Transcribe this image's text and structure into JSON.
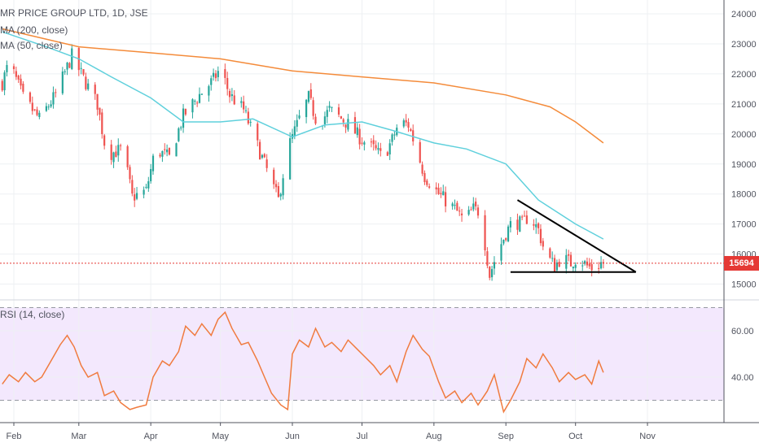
{
  "legend": {
    "title": "MR PRICE GROUP LTD, 1D, JSE",
    "ma200": "MA (200, close)",
    "ma50": "MA (50, close)",
    "rsi": "RSI (14, close)"
  },
  "price_tag": "15694",
  "colors": {
    "up": "#26a69a",
    "down": "#ef5350",
    "ma200": "#f48b3a",
    "ma50": "#5fd0dc",
    "rsi": "#f07b3f",
    "rsi_band": "#f3e8fd",
    "price_line": "#e53935"
  },
  "chart_data": [
    {
      "type": "candlestick",
      "title": "MR PRICE GROUP LTD, 1D, JSE",
      "y_ticks": [
        "24000",
        "23000",
        "22000",
        "21000",
        "20000",
        "19000",
        "18000",
        "17000",
        "16000",
        "15000"
      ],
      "x_ticks": [
        "Feb",
        "Mar",
        "Apr",
        "May",
        "Jun",
        "Jul",
        "Aug",
        "Sep",
        "Oct",
        "Nov"
      ],
      "ylim": [
        14800,
        24300
      ],
      "last_price": 15694,
      "close_anchors": [
        {
          "date": "Jan-27",
          "close": 21700
        },
        {
          "date": "Jan-30",
          "close": 22400
        },
        {
          "date": "Feb-05",
          "close": 21200
        },
        {
          "date": "Feb-12",
          "close": 20500
        },
        {
          "date": "Feb-19",
          "close": 21300
        },
        {
          "date": "Feb-26",
          "close": 22600
        },
        {
          "date": "Mar-04",
          "close": 21700
        },
        {
          "date": "Mar-09",
          "close": 21000
        },
        {
          "date": "Mar-13",
          "close": 19300
        },
        {
          "date": "Mar-20",
          "close": 19500
        },
        {
          "date": "Mar-24",
          "close": 17900
        },
        {
          "date": "Mar-30",
          "close": 18100
        },
        {
          "date": "Apr-03",
          "close": 19500
        },
        {
          "date": "Apr-09",
          "close": 19200
        },
        {
          "date": "Apr-15",
          "close": 20600
        },
        {
          "date": "Apr-22",
          "close": 21300
        },
        {
          "date": "Apr-28",
          "close": 21800
        },
        {
          "date": "May-01",
          "close": 22200
        },
        {
          "date": "May-05",
          "close": 21300
        },
        {
          "date": "May-11",
          "close": 20800
        },
        {
          "date": "May-15",
          "close": 20000
        },
        {
          "date": "May-20",
          "close": 19000
        },
        {
          "date": "May-26",
          "close": 17800
        },
        {
          "date": "May-30",
          "close": 19500
        },
        {
          "date": "Jun-04",
          "close": 20500
        },
        {
          "date": "Jun-08",
          "close": 21200
        },
        {
          "date": "Jun-12",
          "close": 20300
        },
        {
          "date": "Jun-17",
          "close": 20800
        },
        {
          "date": "Jun-24",
          "close": 20400
        },
        {
          "date": "Jul-01",
          "close": 19800
        },
        {
          "date": "Jul-06",
          "close": 19500
        },
        {
          "date": "Jul-10",
          "close": 19200
        },
        {
          "date": "Jul-14",
          "close": 19800
        },
        {
          "date": "Jul-17",
          "close": 20400
        },
        {
          "date": "Jul-21",
          "close": 20300
        },
        {
          "date": "Jul-24",
          "close": 19600
        },
        {
          "date": "Jul-28",
          "close": 18600
        },
        {
          "date": "Aug-03",
          "close": 18000
        },
        {
          "date": "Aug-10",
          "close": 17500
        },
        {
          "date": "Aug-14",
          "close": 17100
        },
        {
          "date": "Aug-18",
          "close": 17500
        },
        {
          "date": "Aug-21",
          "close": 17400
        },
        {
          "date": "Aug-25",
          "close": 15300
        },
        {
          "date": "Aug-28",
          "close": 16000
        },
        {
          "date": "Sep-01",
          "close": 16700
        },
        {
          "date": "Sep-04",
          "close": 17100
        },
        {
          "date": "Sep-08",
          "close": 17000
        },
        {
          "date": "Sep-11",
          "close": 17300
        },
        {
          "date": "Sep-15",
          "close": 16800
        },
        {
          "date": "Sep-18",
          "close": 16000
        },
        {
          "date": "Sep-22",
          "close": 15600
        },
        {
          "date": "Sep-25",
          "close": 15900
        },
        {
          "date": "Sep-29",
          "close": 15700
        },
        {
          "date": "Oct-02",
          "close": 15900
        },
        {
          "date": "Oct-06",
          "close": 15600
        },
        {
          "date": "Oct-09",
          "close": 15500
        },
        {
          "date": "Oct-12",
          "close": 15700
        },
        {
          "date": "Oct-13",
          "close": 15694
        }
      ],
      "ma200": [
        {
          "date": "Jan-27",
          "value": 23500
        },
        {
          "date": "Mar-01",
          "value": 22900
        },
        {
          "date": "Apr-01",
          "value": 22700
        },
        {
          "date": "May-01",
          "value": 22500
        },
        {
          "date": "Jun-01",
          "value": 22100
        },
        {
          "date": "Jul-01",
          "value": 21900
        },
        {
          "date": "Aug-01",
          "value": 21700
        },
        {
          "date": "Sep-01",
          "value": 21300
        },
        {
          "date": "Sep-20",
          "value": 20900
        },
        {
          "date": "Oct-01",
          "value": 20400
        },
        {
          "date": "Oct-13",
          "value": 19700
        }
      ],
      "ma50": [
        {
          "date": "Jan-27",
          "value": 23400
        },
        {
          "date": "Feb-15",
          "value": 22900
        },
        {
          "date": "Mar-01",
          "value": 22500
        },
        {
          "date": "Mar-15",
          "value": 21900
        },
        {
          "date": "Apr-01",
          "value": 21200
        },
        {
          "date": "Apr-15",
          "value": 20400
        },
        {
          "date": "May-01",
          "value": 20400
        },
        {
          "date": "May-15",
          "value": 20500
        },
        {
          "date": "Jun-01",
          "value": 19900
        },
        {
          "date": "Jun-15",
          "value": 20300
        },
        {
          "date": "Jul-01",
          "value": 20400
        },
        {
          "date": "Jul-15",
          "value": 20100
        },
        {
          "date": "Aug-01",
          "value": 19700
        },
        {
          "date": "Aug-15",
          "value": 19500
        },
        {
          "date": "Sep-01",
          "value": 19000
        },
        {
          "date": "Sep-15",
          "value": 17800
        },
        {
          "date": "Oct-01",
          "value": 17000
        },
        {
          "date": "Oct-13",
          "value": 16500
        }
      ],
      "triangle": {
        "upper": [
          {
            "date": "Sep-06",
            "value": 17800
          },
          {
            "date": "Oct-27",
            "value": 15400
          }
        ],
        "lower": [
          {
            "date": "Sep-03",
            "value": 15400
          },
          {
            "date": "Oct-27",
            "value": 15400
          }
        ]
      }
    },
    {
      "type": "line",
      "title": "RSI (14, close)",
      "y_ticks": [
        "60.00",
        "40.00"
      ],
      "ylim": [
        22,
        73
      ],
      "bands": [
        30,
        70
      ],
      "values": [
        {
          "date": "Jan-27",
          "value": 37
        },
        {
          "date": "Jan-30",
          "value": 41
        },
        {
          "date": "Feb-03",
          "value": 38
        },
        {
          "date": "Feb-06",
          "value": 42
        },
        {
          "date": "Feb-10",
          "value": 38
        },
        {
          "date": "Feb-13",
          "value": 40
        },
        {
          "date": "Feb-17",
          "value": 47
        },
        {
          "date": "Feb-21",
          "value": 54
        },
        {
          "date": "Feb-24",
          "value": 58
        },
        {
          "date": "Feb-27",
          "value": 53
        },
        {
          "date": "Mar-02",
          "value": 45
        },
        {
          "date": "Mar-05",
          "value": 40
        },
        {
          "date": "Mar-09",
          "value": 42
        },
        {
          "date": "Mar-12",
          "value": 32
        },
        {
          "date": "Mar-16",
          "value": 34
        },
        {
          "date": "Mar-19",
          "value": 29
        },
        {
          "date": "Mar-23",
          "value": 26
        },
        {
          "date": "Mar-26",
          "value": 27
        },
        {
          "date": "Mar-30",
          "value": 28
        },
        {
          "date": "Apr-02",
          "value": 40
        },
        {
          "date": "Apr-06",
          "value": 47
        },
        {
          "date": "Apr-09",
          "value": 45
        },
        {
          "date": "Apr-13",
          "value": 51
        },
        {
          "date": "Apr-16",
          "value": 62
        },
        {
          "date": "Apr-20",
          "value": 58
        },
        {
          "date": "Apr-23",
          "value": 63
        },
        {
          "date": "Apr-27",
          "value": 58
        },
        {
          "date": "Apr-30",
          "value": 65
        },
        {
          "date": "May-03",
          "value": 68
        },
        {
          "date": "May-06",
          "value": 61
        },
        {
          "date": "May-10",
          "value": 54
        },
        {
          "date": "May-13",
          "value": 55
        },
        {
          "date": "May-17",
          "value": 47
        },
        {
          "date": "May-20",
          "value": 40
        },
        {
          "date": "May-23",
          "value": 33
        },
        {
          "date": "May-27",
          "value": 28
        },
        {
          "date": "May-30",
          "value": 26
        },
        {
          "date": "Jun-01",
          "value": 50
        },
        {
          "date": "Jun-04",
          "value": 56
        },
        {
          "date": "Jun-08",
          "value": 53
        },
        {
          "date": "Jun-11",
          "value": 61
        },
        {
          "date": "Jun-15",
          "value": 53
        },
        {
          "date": "Jun-18",
          "value": 55
        },
        {
          "date": "Jun-22",
          "value": 51
        },
        {
          "date": "Jun-25",
          "value": 56
        },
        {
          "date": "Jun-29",
          "value": 52
        },
        {
          "date": "Jul-02",
          "value": 49
        },
        {
          "date": "Jul-06",
          "value": 45
        },
        {
          "date": "Jul-09",
          "value": 41
        },
        {
          "date": "Jul-13",
          "value": 45
        },
        {
          "date": "Jul-16",
          "value": 38
        },
        {
          "date": "Jul-20",
          "value": 51
        },
        {
          "date": "Jul-23",
          "value": 58
        },
        {
          "date": "Jul-27",
          "value": 52
        },
        {
          "date": "Jul-30",
          "value": 49
        },
        {
          "date": "Aug-03",
          "value": 38
        },
        {
          "date": "Aug-06",
          "value": 31
        },
        {
          "date": "Aug-10",
          "value": 34
        },
        {
          "date": "Aug-13",
          "value": 29
        },
        {
          "date": "Aug-17",
          "value": 33
        },
        {
          "date": "Aug-20",
          "value": 28
        },
        {
          "date": "Aug-24",
          "value": 34
        },
        {
          "date": "Aug-27",
          "value": 41
        },
        {
          "date": "Aug-31",
          "value": 25
        },
        {
          "date": "Sep-03",
          "value": 30
        },
        {
          "date": "Sep-07",
          "value": 38
        },
        {
          "date": "Sep-10",
          "value": 48
        },
        {
          "date": "Sep-14",
          "value": 44
        },
        {
          "date": "Sep-17",
          "value": 50
        },
        {
          "date": "Sep-21",
          "value": 44
        },
        {
          "date": "Sep-24",
          "value": 38
        },
        {
          "date": "Sep-28",
          "value": 42
        },
        {
          "date": "Oct-01",
          "value": 39
        },
        {
          "date": "Oct-05",
          "value": 41
        },
        {
          "date": "Oct-08",
          "value": 37
        },
        {
          "date": "Oct-11",
          "value": 47
        },
        {
          "date": "Oct-13",
          "value": 42
        }
      ]
    }
  ]
}
